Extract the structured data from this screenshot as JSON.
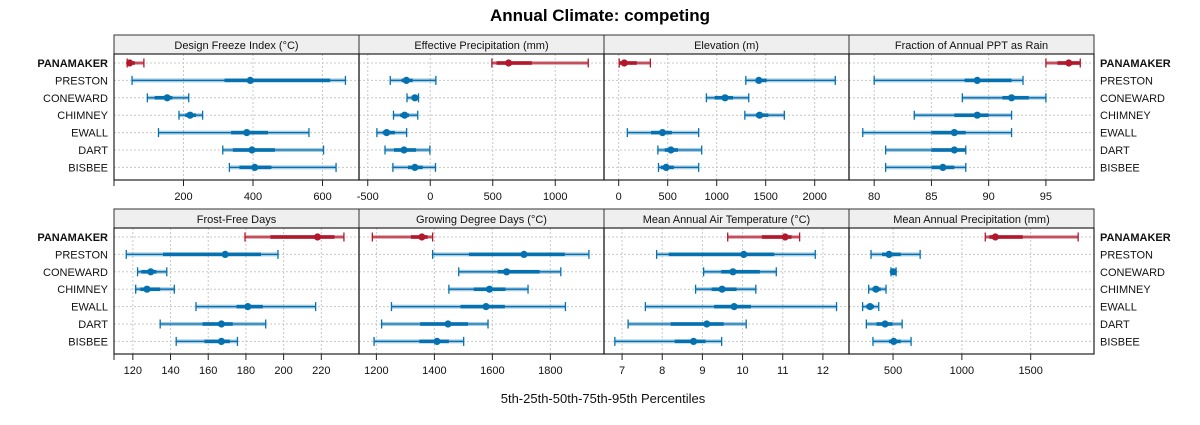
{
  "chart_data": {
    "type": "dotplot-percentiles",
    "title": "Annual Climate: competing",
    "xlabel": "5th-25th-50th-75th-95th Percentiles",
    "percentile_keys": [
      "p5",
      "p25",
      "p50",
      "p75",
      "p95"
    ],
    "categories": [
      "PANAMAKER",
      "PRESTON",
      "CONEWARD",
      "CHIMNEY",
      "EWALL",
      "DART",
      "BISBEE"
    ],
    "highlight_category": "PANAMAKER",
    "colors": {
      "highlight": "#b2182b",
      "other": "#0571b0",
      "grid": "#c8c8c8",
      "strip": "#efefef"
    },
    "panels": [
      {
        "title": "Design Freeze Index (°C)",
        "xlim": [
          0,
          705
        ],
        "ticks": [
          200,
          400,
          600
        ],
        "tick_labels": [
          "200",
          "400",
          "600"
        ],
        "data": {
          "PANAMAKER": [
            38,
            42,
            45,
            60,
            86
          ],
          "PRESTON": [
            52,
            318,
            392,
            622,
            666
          ],
          "CONEWARD": [
            96,
            117,
            153,
            168,
            215
          ],
          "CHIMNEY": [
            187,
            205,
            219,
            236,
            255
          ],
          "EWALL": [
            128,
            337,
            382,
            443,
            561
          ],
          "DART": [
            313,
            342,
            397,
            463,
            603
          ],
          "BISBEE": [
            332,
            361,
            405,
            453,
            639
          ]
        }
      },
      {
        "title": "Effective Precipitation (mm)",
        "xlim": [
          -570,
          1390
        ],
        "ticks": [
          -500,
          0,
          500,
          1000
        ],
        "tick_labels": [
          "-500",
          "0",
          "500",
          "1000"
        ],
        "data": {
          "PANAMAKER": [
            493,
            530,
            627,
            813,
            1264
          ],
          "PRESTON": [
            -320,
            -230,
            -191,
            -140,
            45
          ],
          "CONEWARD": [
            -186,
            -150,
            -123,
            -105,
            -94
          ],
          "CHIMNEY": [
            -294,
            -240,
            -205,
            -170,
            -100
          ],
          "EWALL": [
            -427,
            -380,
            -349,
            -283,
            -189
          ],
          "DART": [
            -362,
            -290,
            -210,
            -113,
            -3
          ],
          "BISBEE": [
            -299,
            -178,
            -123,
            -60,
            42
          ]
        }
      },
      {
        "title": "Elevation (m)",
        "xlim": [
          -150,
          2350
        ],
        "ticks": [
          0,
          500,
          1000,
          1500,
          2000
        ],
        "tick_labels": [
          "0",
          "500",
          "1000",
          "1500",
          "2000"
        ],
        "data": {
          "PANAMAKER": [
            5,
            10,
            57,
            185,
            323
          ],
          "PRESTON": [
            1297,
            1400,
            1430,
            1510,
            2210
          ],
          "CONEWARD": [
            895,
            979,
            1085,
            1167,
            1327
          ],
          "CHIMNEY": [
            1287,
            1400,
            1438,
            1527,
            1690
          ],
          "EWALL": [
            88,
            330,
            447,
            543,
            816
          ],
          "DART": [
            400,
            470,
            533,
            605,
            847
          ],
          "BISBEE": [
            406,
            430,
            484,
            563,
            816
          ]
        }
      },
      {
        "title": "Fraction of Annual PPT as Rain",
        "xlim": [
          77.8,
          99.2
        ],
        "ticks": [
          80,
          85,
          90,
          95
        ],
        "tick_labels": [
          "80",
          "85",
          "90",
          "95"
        ],
        "data": {
          "PANAMAKER": [
            95,
            96,
            97,
            98,
            98
          ],
          "PRESTON": [
            80,
            87.9,
            89,
            92,
            93
          ],
          "CONEWARD": [
            87.7,
            91.2,
            92,
            93.5,
            95
          ],
          "CHIMNEY": [
            83.5,
            87,
            89,
            90,
            92
          ],
          "EWALL": [
            79,
            85,
            87,
            88,
            92
          ],
          "DART": [
            81,
            85,
            87,
            88,
            88
          ],
          "BISBEE": [
            81,
            85,
            86,
            87,
            88
          ]
        }
      },
      {
        "title": "Frost-Free Days",
        "xlim": [
          110,
          240
        ],
        "ticks": [
          120,
          140,
          160,
          180,
          200,
          220
        ],
        "tick_labels": [
          "120",
          "140",
          "160",
          "180",
          "200",
          "220"
        ],
        "data": {
          "PANAMAKER": [
            179.5,
            193,
            218,
            227,
            232
          ],
          "PRESTON": [
            116.5,
            136,
            169,
            188,
            197
          ],
          "CONEWARD": [
            122.5,
            124.5,
            129.5,
            132.5,
            138
          ],
          "CHIMNEY": [
            121.5,
            124,
            127.5,
            134.5,
            142
          ],
          "EWALL": [
            153.5,
            175,
            181,
            189,
            217
          ],
          "DART": [
            134.5,
            157,
            167,
            173,
            190.5
          ],
          "BISBEE": [
            143,
            158,
            167,
            171.5,
            175.5
          ]
        }
      },
      {
        "title": "Growing Degree Days (°C)",
        "xlim": [
          1140,
          1985
        ],
        "ticks": [
          1200,
          1400,
          1600,
          1800
        ],
        "tick_labels": [
          "1200",
          "1400",
          "1600",
          "1800"
        ],
        "data": {
          "PANAMAKER": [
            1186,
            1319,
            1357,
            1377,
            1394
          ],
          "PRESTON": [
            1394,
            1519,
            1709,
            1850,
            1933
          ],
          "CONEWARD": [
            1484,
            1619,
            1649,
            1763,
            1836
          ],
          "CHIMNEY": [
            1450,
            1536,
            1590,
            1645,
            1723
          ],
          "EWALL": [
            1252,
            1490,
            1578,
            1643,
            1852
          ],
          "DART": [
            1218,
            1351,
            1447,
            1516,
            1585
          ],
          "BISBEE": [
            1192,
            1348,
            1409,
            1450,
            1501
          ]
        }
      },
      {
        "title": "Mean Annual Air Temperature (°C)",
        "xlim": [
          6.55,
          12.65
        ],
        "ticks": [
          7,
          8,
          9,
          10,
          11,
          12
        ],
        "tick_labels": [
          "7",
          "8",
          "9",
          "10",
          "11",
          "12"
        ],
        "data": {
          "PANAMAKER": [
            9.63,
            10.48,
            11.06,
            11.22,
            11.42
          ],
          "PRESTON": [
            7.86,
            8.16,
            10.03,
            10.79,
            11.81
          ],
          "CONEWARD": [
            9.03,
            9.47,
            9.76,
            10.43,
            10.84
          ],
          "CHIMNEY": [
            8.83,
            9.23,
            9.49,
            9.85,
            10.33
          ],
          "EWALL": [
            7.58,
            9.29,
            9.79,
            10.21,
            12.34
          ],
          "DART": [
            7.15,
            8.21,
            9.11,
            9.53,
            10.09
          ],
          "BISBEE": [
            6.82,
            8.31,
            8.78,
            9.08,
            9.48
          ]
        }
      },
      {
        "title": "Mean Annual Precipitation (mm)",
        "xlim": [
          180,
          1960
        ],
        "ticks": [
          500,
          1000,
          1500
        ],
        "tick_labels": [
          "500",
          "1000",
          "1500"
        ],
        "data": {
          "PANAMAKER": [
            1170,
            1200,
            1243,
            1442,
            1845
          ],
          "PRESTON": [
            340,
            420,
            471,
            556,
            697
          ],
          "CONEWARD": [
            485,
            495,
            502,
            510,
            522
          ],
          "CHIMNEY": [
            323,
            350,
            376,
            410,
            449
          ],
          "EWALL": [
            279,
            305,
            333,
            362,
            396
          ],
          "DART": [
            306,
            380,
            442,
            495,
            566
          ],
          "BISBEE": [
            354,
            470,
            505,
            556,
            631
          ]
        }
      }
    ]
  }
}
